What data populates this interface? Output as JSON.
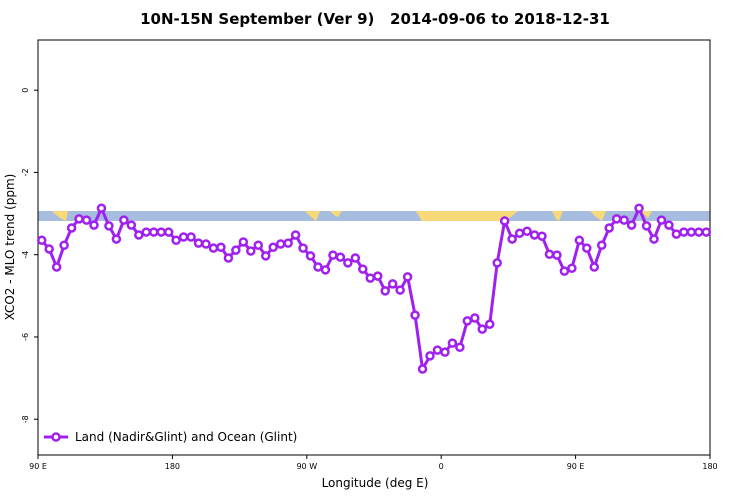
{
  "chart_data": {
    "type": "line",
    "title": "10N-15N September (Ver 9)   2014-09-06 to 2018-12-31",
    "x_label": "Longitude (deg E)",
    "y_label": "XCO2 - MLO trend (ppm)",
    "x": [
      92.5,
      97.5,
      102.5,
      107.5,
      112.5,
      117.5,
      122.5,
      127.5,
      132.5,
      137.5,
      142.5,
      147.5,
      152.5,
      157.5,
      162.5,
      167.5,
      172.5,
      177.5,
      182.5,
      187.5,
      192.5,
      197.5,
      202.5,
      207.5,
      212.5,
      217.5,
      222.5,
      227.5,
      232.5,
      237.5,
      242.5,
      247.5,
      252.5,
      257.5,
      262.5,
      267.5,
      272.5,
      277.5,
      282.5,
      287.5,
      292.5,
      297.5,
      302.5,
      307.5,
      312.5,
      317.5,
      322.5,
      327.5,
      332.5,
      337.5,
      342.5,
      347.5,
      352.5,
      357.5,
      362.5,
      367.5,
      372.5,
      377.5,
      382.5,
      387.5,
      392.5,
      397.5,
      402.5,
      407.5,
      412.5,
      417.5,
      422.5,
      427.5,
      432.5,
      437.5,
      442.5,
      447.5,
      452.5,
      457.5,
      462.5,
      467.5,
      472.5,
      477.5,
      482.5,
      487.5,
      492.5,
      497.5,
      502.5,
      507.5,
      512.5,
      517.5,
      522.5,
      527.5,
      532.5,
      537.5
    ],
    "series": [
      {
        "name": "Land (Nadir&Glint) and Ocean (Glint)",
        "color": "#a020f0",
        "values": [
          -3.65,
          -3.86,
          -4.3,
          -3.77,
          -3.35,
          -3.13,
          -3.16,
          -3.28,
          -2.87,
          -3.3,
          -3.62,
          -3.16,
          -3.28,
          -3.52,
          -3.45,
          -3.45,
          -3.45,
          -3.45,
          -3.65,
          -3.57,
          -3.57,
          -3.72,
          -3.74,
          -3.84,
          -3.82,
          -4.08,
          -3.89,
          -3.69,
          -3.91,
          -3.77,
          -4.03,
          -3.82,
          -3.74,
          -3.72,
          -3.52,
          -3.84,
          -4.03,
          -4.3,
          -4.37,
          -4.01,
          -4.06,
          -4.2,
          -4.08,
          -4.35,
          -4.57,
          -4.52,
          -4.88,
          -4.71,
          -4.86,
          -4.54,
          -5.47,
          -6.78,
          -6.46,
          -6.32,
          -6.37,
          -6.15,
          -6.25,
          -5.61,
          -5.54,
          -5.81,
          -5.69,
          -4.2,
          -3.18,
          -3.62,
          -3.48,
          -3.43,
          -3.52,
          -3.55,
          -3.99,
          -4.01,
          -4.4,
          -4.33,
          -3.65,
          -3.84,
          -4.3,
          -3.77,
          -3.35,
          -3.13,
          -3.16,
          -3.28,
          -2.87,
          -3.3,
          -3.62,
          -3.16,
          -3.28,
          -3.5,
          -3.45,
          -3.45,
          -3.45,
          -3.45
        ]
      }
    ],
    "xlim": [
      90,
      540
    ],
    "xticks": [
      {
        "value": 90,
        "label": "90 E"
      },
      180,
      {
        "value": 270,
        "label": "90 W"
      },
      {
        "value": 360,
        "label": "0"
      },
      {
        "value": 450,
        "label": "90 E"
      },
      {
        "value": 540,
        "label": "180"
      }
    ],
    "ylim": [
      -8.87,
      1.22
    ],
    "yticks": [
      0,
      -2,
      -4,
      -6,
      -8
    ],
    "legend": "bottom-left"
  }
}
